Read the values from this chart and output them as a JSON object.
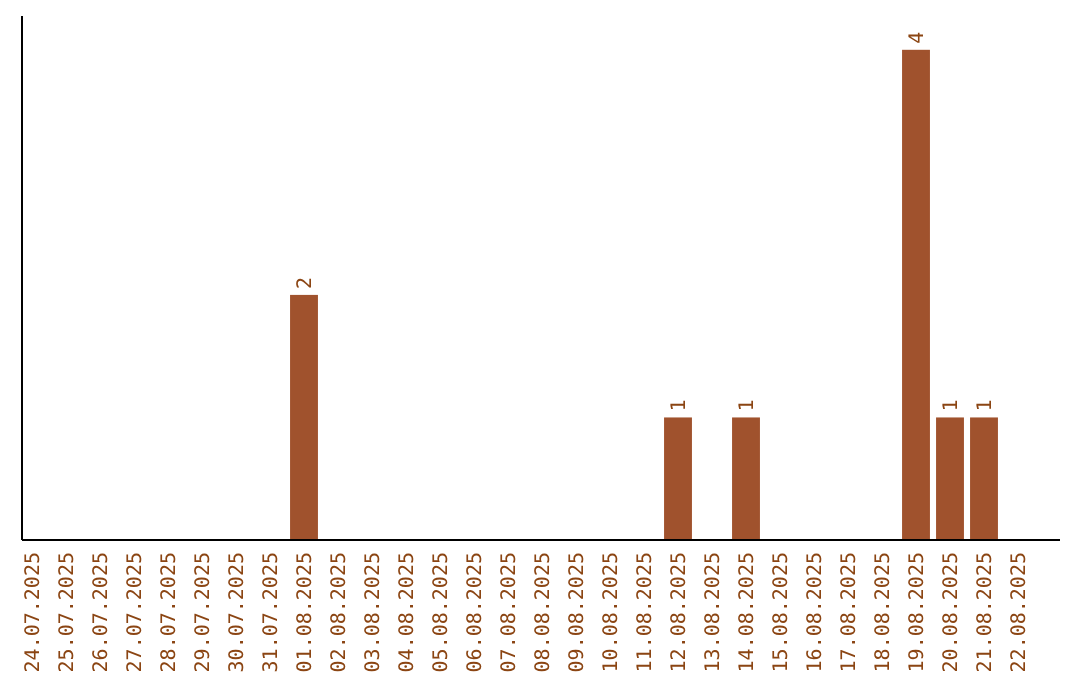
{
  "chart_data": {
    "type": "bar",
    "categories": [
      "24.07.2025",
      "25.07.2025",
      "26.07.2025",
      "27.07.2025",
      "28.07.2025",
      "29.07.2025",
      "30.07.2025",
      "31.07.2025",
      "01.08.2025",
      "02.08.2025",
      "03.08.2025",
      "04.08.2025",
      "05.08.2025",
      "06.08.2025",
      "07.08.2025",
      "08.08.2025",
      "09.08.2025",
      "10.08.2025",
      "11.08.2025",
      "12.08.2025",
      "13.08.2025",
      "14.08.2025",
      "15.08.2025",
      "16.08.2025",
      "17.08.2025",
      "18.08.2025",
      "19.08.2025",
      "20.08.2025",
      "21.08.2025",
      "22.08.2025"
    ],
    "values": [
      0,
      0,
      0,
      0,
      0,
      0,
      0,
      0,
      2,
      0,
      0,
      0,
      0,
      0,
      0,
      0,
      0,
      0,
      0,
      1,
      0,
      1,
      0,
      0,
      0,
      0,
      4,
      1,
      1,
      0
    ],
    "value_labels": [
      null,
      null,
      null,
      null,
      null,
      null,
      null,
      null,
      "2",
      null,
      null,
      null,
      null,
      null,
      null,
      null,
      null,
      null,
      null,
      "1",
      null,
      "1",
      null,
      null,
      null,
      null,
      "4",
      "1",
      "1",
      null
    ],
    "color": "#a0522d",
    "tick_labels": "x"
  }
}
